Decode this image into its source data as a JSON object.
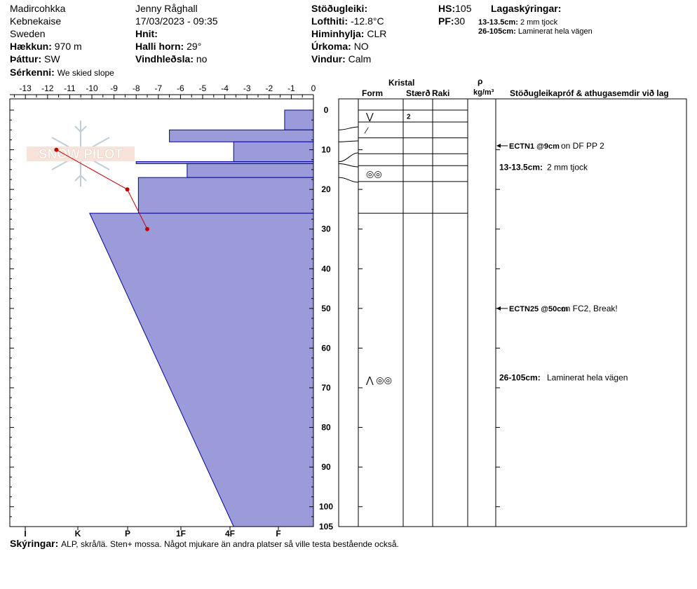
{
  "header": {
    "location": "Madircohkka",
    "region": "Kebnekaise",
    "country": "Sweden",
    "elevation_label": "Hækkun:",
    "elevation_value": "970 m",
    "aspect_label": "Þáttur:",
    "aspect_value": "SW",
    "features_label": "Sérkenni:",
    "features_value": "We skied slope",
    "observer": "Jenny Råghall",
    "datetime": "17/03/2023 - 09:35",
    "coords_label": "Hnit:",
    "slope_label": "Halli horn:",
    "slope_value": "29°",
    "wind_loading_label": "Vindhleðsla:",
    "wind_loading_value": "no",
    "stability_label": "Stöðugleiki:",
    "air_temp_label": "Lofthiti:",
    "air_temp_value": "-12.8°C",
    "sky_label": "Himinhylja:",
    "sky_value": "CLR",
    "precip_label": "Úrkoma:",
    "precip_value": "NO",
    "wind_label": "Vindur:",
    "wind_value": "Calm",
    "hs_label": "HS:",
    "hs_value": "105",
    "pf_label": "PF:",
    "pf_value": "30",
    "layer_notes_title": "Lagaskýringar:",
    "layer_notes": [
      {
        "range": "13-13.5cm:",
        "text": "2 mm tjock"
      },
      {
        "range": "26-105cm:",
        "text": "Laminerat hela vägen"
      }
    ]
  },
  "logo_text": "SNOW PILOT",
  "columns": {
    "crystal": "Kristal",
    "form": "Form",
    "size": "Stærð",
    "moisture": "Raki",
    "density_symbol": "ρ",
    "density_unit": "kg/m³",
    "comments": "Stöðugleikapróf & athugasemdir við lag"
  },
  "chart_data": {
    "type": "snow_profile",
    "temperature_axis": {
      "ticks": [
        "-13",
        "-12",
        "-11",
        "-10",
        "-9",
        "-8",
        "-7",
        "-6",
        "-5",
        "-4",
        "-3",
        "-2",
        "-1",
        "0"
      ],
      "range": [
        -13.5,
        0
      ]
    },
    "depth_axis": {
      "ticks": [
        "0",
        "10",
        "20",
        "30",
        "40",
        "50",
        "60",
        "70",
        "80",
        "90",
        "100",
        "105"
      ],
      "range": [
        0,
        105
      ]
    },
    "hardness_axis": {
      "ticks": [
        "I",
        "K",
        "P",
        "1F",
        "4F",
        "F"
      ]
    },
    "snow_height_cm": 105,
    "hardness_layers": [
      {
        "top": 0,
        "bottom": 5,
        "hardness": 1.3
      },
      {
        "top": 5,
        "bottom": 8,
        "hardness": 6.5
      },
      {
        "top": 8,
        "bottom": 13,
        "hardness": 3.6
      },
      {
        "top": 13,
        "bottom": 13.5,
        "hardness": 8.0
      },
      {
        "top": 13.5,
        "bottom": 17,
        "hardness": 5.7
      },
      {
        "top": 17,
        "bottom": 26,
        "hardness": 7.9
      },
      {
        "top": 26,
        "bottom": 105,
        "hardness_top": 10.1,
        "hardness_bottom": 3.6
      }
    ],
    "temperature_profile": [
      {
        "depth": 10,
        "temp": -11.6
      },
      {
        "depth": 20,
        "temp": -8.4
      },
      {
        "depth": 30,
        "temp": -7.5
      }
    ],
    "layer_boundaries": [
      0,
      3,
      7,
      11,
      14,
      18,
      26
    ],
    "crystal_symbols": [
      {
        "depth": 1.5,
        "symbol": "⋁",
        "size": "2"
      },
      {
        "depth": 5,
        "symbol": "⁄",
        "size": ""
      },
      {
        "depth": 16,
        "symbol": "◎◎",
        "size": ""
      },
      {
        "depth": 68,
        "symbol": "⋀ ◎◎",
        "size": ""
      }
    ],
    "stability_tests": [
      {
        "depth": 9,
        "label": "ECTN1 @9cm",
        "text": "on DF PP 2"
      },
      {
        "depth": 50,
        "label": "ECTN25 @50cm",
        "text": "on FC2, Break!"
      }
    ],
    "comments": [
      {
        "depth": 16,
        "label": "13-13.5cm:",
        "text": "2 mm tjock"
      },
      {
        "depth": 69,
        "label": "26-105cm:",
        "text": "Laminerat hela vägen"
      }
    ]
  },
  "footer": {
    "label": "Skýringar:",
    "text": "ALP, skrå/lä. Sten+ mossa. Något mjukare än andra platser så ville testa bestående också."
  }
}
